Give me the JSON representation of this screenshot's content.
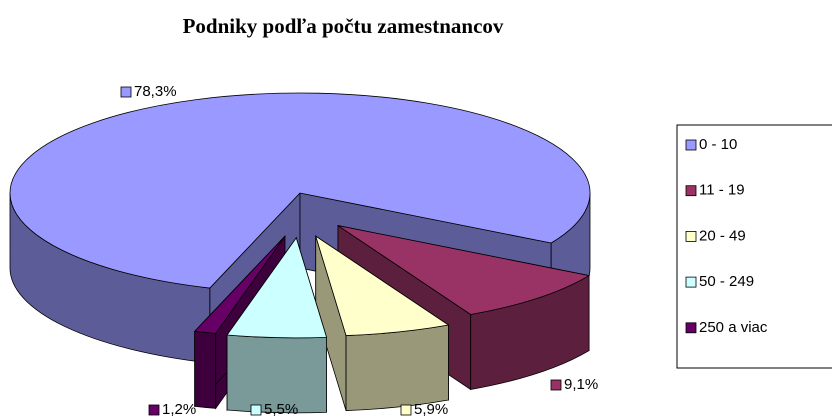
{
  "chart_data": {
    "type": "pie",
    "title": "Podniky podľa počtu zamestnancov",
    "categories": [
      "0 - 10",
      "11 - 19",
      "20 - 49",
      "50 - 249",
      "250 a viac"
    ],
    "values": [
      78.3,
      9.1,
      5.9,
      5.5,
      1.2
    ],
    "value_labels": [
      "78,3%",
      "9,1%",
      "5,9%",
      "5,5%",
      "1,2%"
    ],
    "colors": [
      "#9999ff",
      "#993366",
      "#ffffcc",
      "#ccffff",
      "#660066"
    ],
    "legend": "right"
  }
}
